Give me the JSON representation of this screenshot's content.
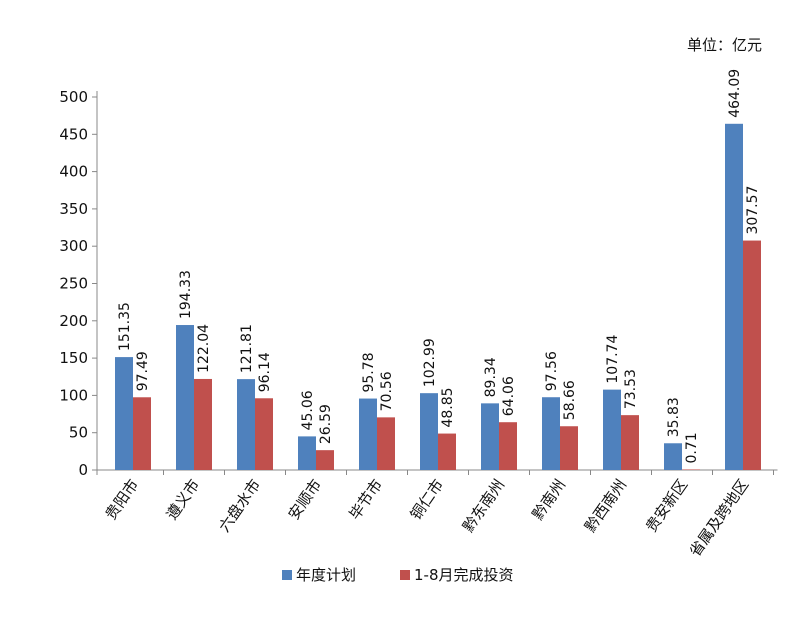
{
  "chart_data": {
    "type": "bar",
    "unit_label": "单位：亿元",
    "categories": [
      "贵阳市",
      "遵义市",
      "六盘水市",
      "安顺市",
      "毕节市",
      "铜仁市",
      "黔东南州",
      "黔南州",
      "黔西南州",
      "贵安新区",
      "省属及跨地区"
    ],
    "series": [
      {
        "name": "年度计划",
        "color": "#4F81BD",
        "values": [
          151.35,
          194.33,
          121.81,
          45.06,
          95.78,
          102.99,
          89.34,
          97.56,
          107.74,
          35.83,
          464.09
        ]
      },
      {
        "name": "1-8月完成投资",
        "color": "#C0504D",
        "values": [
          97.49,
          122.04,
          96.14,
          26.59,
          70.56,
          48.85,
          64.06,
          58.66,
          73.53,
          0.71,
          307.57
        ]
      }
    ],
    "y_ticks": [
      0,
      50,
      100,
      150,
      200,
      250,
      300,
      350,
      400,
      450,
      500
    ],
    "ylim": [
      0,
      500
    ],
    "grid": false,
    "legend_position": "bottom"
  }
}
